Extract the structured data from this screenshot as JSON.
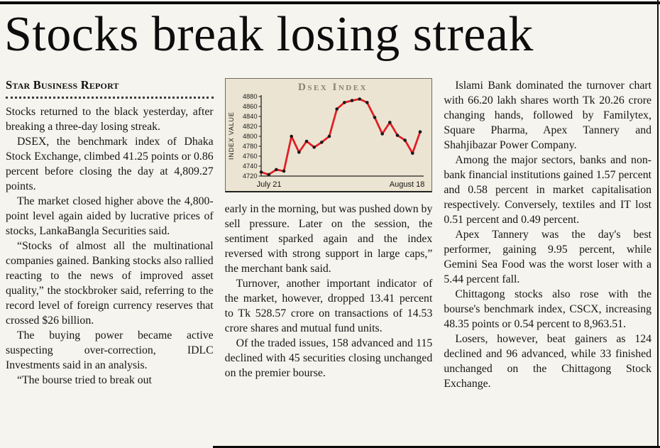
{
  "article": {
    "headline": "Stocks break losing streak",
    "byline": "Star Business Report"
  },
  "columns": {
    "col1": [
      "Stocks returned to the black yesterday, after breaking a three-day losing streak.",
      "DSEX, the benchmark index of Dhaka Stock Exchange, climbed 41.25 points or 0.86 percent before closing the day at 4,809.27 points.",
      "The market closed higher above the 4,800-point level again aided by lucrative prices of stocks, LankaBangla Securities said.",
      "“Stocks of almost all the multinational companies gained. Banking stocks also rallied reacting to the news of improved asset quality,” the stockbroker said, referring to the record level of foreign currency reserves that crossed $26 billion.",
      "The buying power became active suspecting over-correction, IDLC Investments said in an analysis.",
      "“The bourse tried to break out"
    ],
    "col2": [
      "early in the morning, but was pushed down by sell pressure. Later on the session, the sentiment sparked again and the index reversed with strong support in large caps,” the merchant bank said.",
      "Turnover, another important indicator of the market, however, dropped 13.41 percent to Tk 528.57 crore on transactions of 14.53 crore shares and mutual fund units.",
      "Of the traded issues, 158 advanced and 115 declined with 45 securities closing unchanged on the premier bourse."
    ],
    "col3": [
      "Islami Bank dominated the turnover chart with 66.20 lakh shares worth Tk 20.26 crore changing hands, followed by Familytex, Square Pharma, Apex Tannery and Shahjibazar Power Company.",
      "Among the major sectors, banks and non-bank financial institutions gained 1.57 percent and 0.58 percent in market capitalisation respectively. Conversely, textiles and IT lost 0.51 percent and 0.49 percent.",
      "Apex Tannery was the day's best performer, gaining 9.95 percent, while Gemini Sea Food was the worst loser with a 5.44 percent fall.",
      "Chittagong stocks also rose with the bourse's benchmark index, CSCX, increasing 48.35 points or 0.54 percent to 8,963.51.",
      "Losers, however, beat gainers as 124 declined and 96 advanced, while 33 finished unchanged on the Chittagong Stock Exchange."
    ]
  },
  "chart_data": {
    "type": "line",
    "title": "Dsex Index",
    "ylabel": "INDEX VALUE",
    "x_start_label": "July 21",
    "x_end_label": "August 18",
    "ylim": [
      4720,
      4880
    ],
    "yticks": [
      4720,
      4740,
      4760,
      4780,
      4800,
      4820,
      4840,
      4860,
      4880
    ],
    "values": [
      4728,
      4723,
      4733,
      4730,
      4800,
      4768,
      4790,
      4778,
      4788,
      4800,
      4855,
      4868,
      4872,
      4875,
      4868,
      4838,
      4805,
      4828,
      4802,
      4792,
      4766,
      4809
    ],
    "line_color": "#e01f26",
    "marker_color": "#1a1a1a",
    "grid": false,
    "legend": false
  }
}
